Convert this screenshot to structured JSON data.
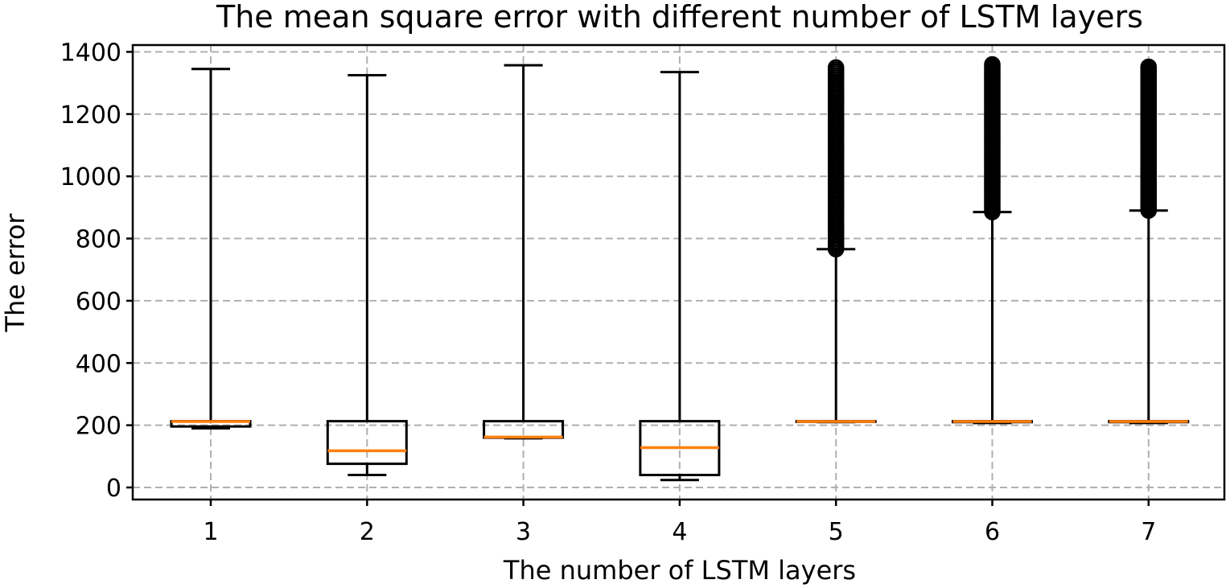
{
  "chart_data": {
    "type": "boxplot",
    "title": "The mean square error with different number of LSTM layers",
    "xlabel": "The number of LSTM layers",
    "ylabel": "The error",
    "ylim": [
      -40,
      1410
    ],
    "yticks": [
      0,
      200,
      400,
      600,
      800,
      1000,
      1200,
      1400
    ],
    "grid": true,
    "colors": {
      "box": "#000000",
      "median": "#ff7f0e",
      "grid": "#b0b0b0"
    },
    "boxes": [
      {
        "label": "1",
        "whisker_low": 190,
        "q1": 196,
        "median": 212,
        "q3": 213,
        "whisker_high": 1345,
        "fliers": []
      },
      {
        "label": "2",
        "whisker_low": 40,
        "q1": 76,
        "median": 118,
        "q3": 213,
        "whisker_high": 1325,
        "fliers": []
      },
      {
        "label": "3",
        "whisker_low": 158,
        "q1": 160,
        "median": 162,
        "q3": 213,
        "whisker_high": 1357,
        "fliers": []
      },
      {
        "label": "4",
        "whisker_low": 24,
        "q1": 40,
        "median": 128,
        "q3": 213,
        "whisker_high": 1335,
        "fliers": []
      },
      {
        "label": "5",
        "whisker_low": 210,
        "q1": 211,
        "median": 212,
        "q3": 213,
        "whisker_high": 766,
        "fliers_range": [
          766,
          1350
        ]
      },
      {
        "label": "6",
        "whisker_low": 207,
        "q1": 210,
        "median": 212,
        "q3": 213,
        "whisker_high": 885,
        "fliers_range": [
          885,
          1360
        ]
      },
      {
        "label": "7",
        "whisker_low": 207,
        "q1": 210,
        "median": 212,
        "q3": 213,
        "whisker_high": 890,
        "fliers_range": [
          890,
          1352
        ]
      }
    ]
  }
}
